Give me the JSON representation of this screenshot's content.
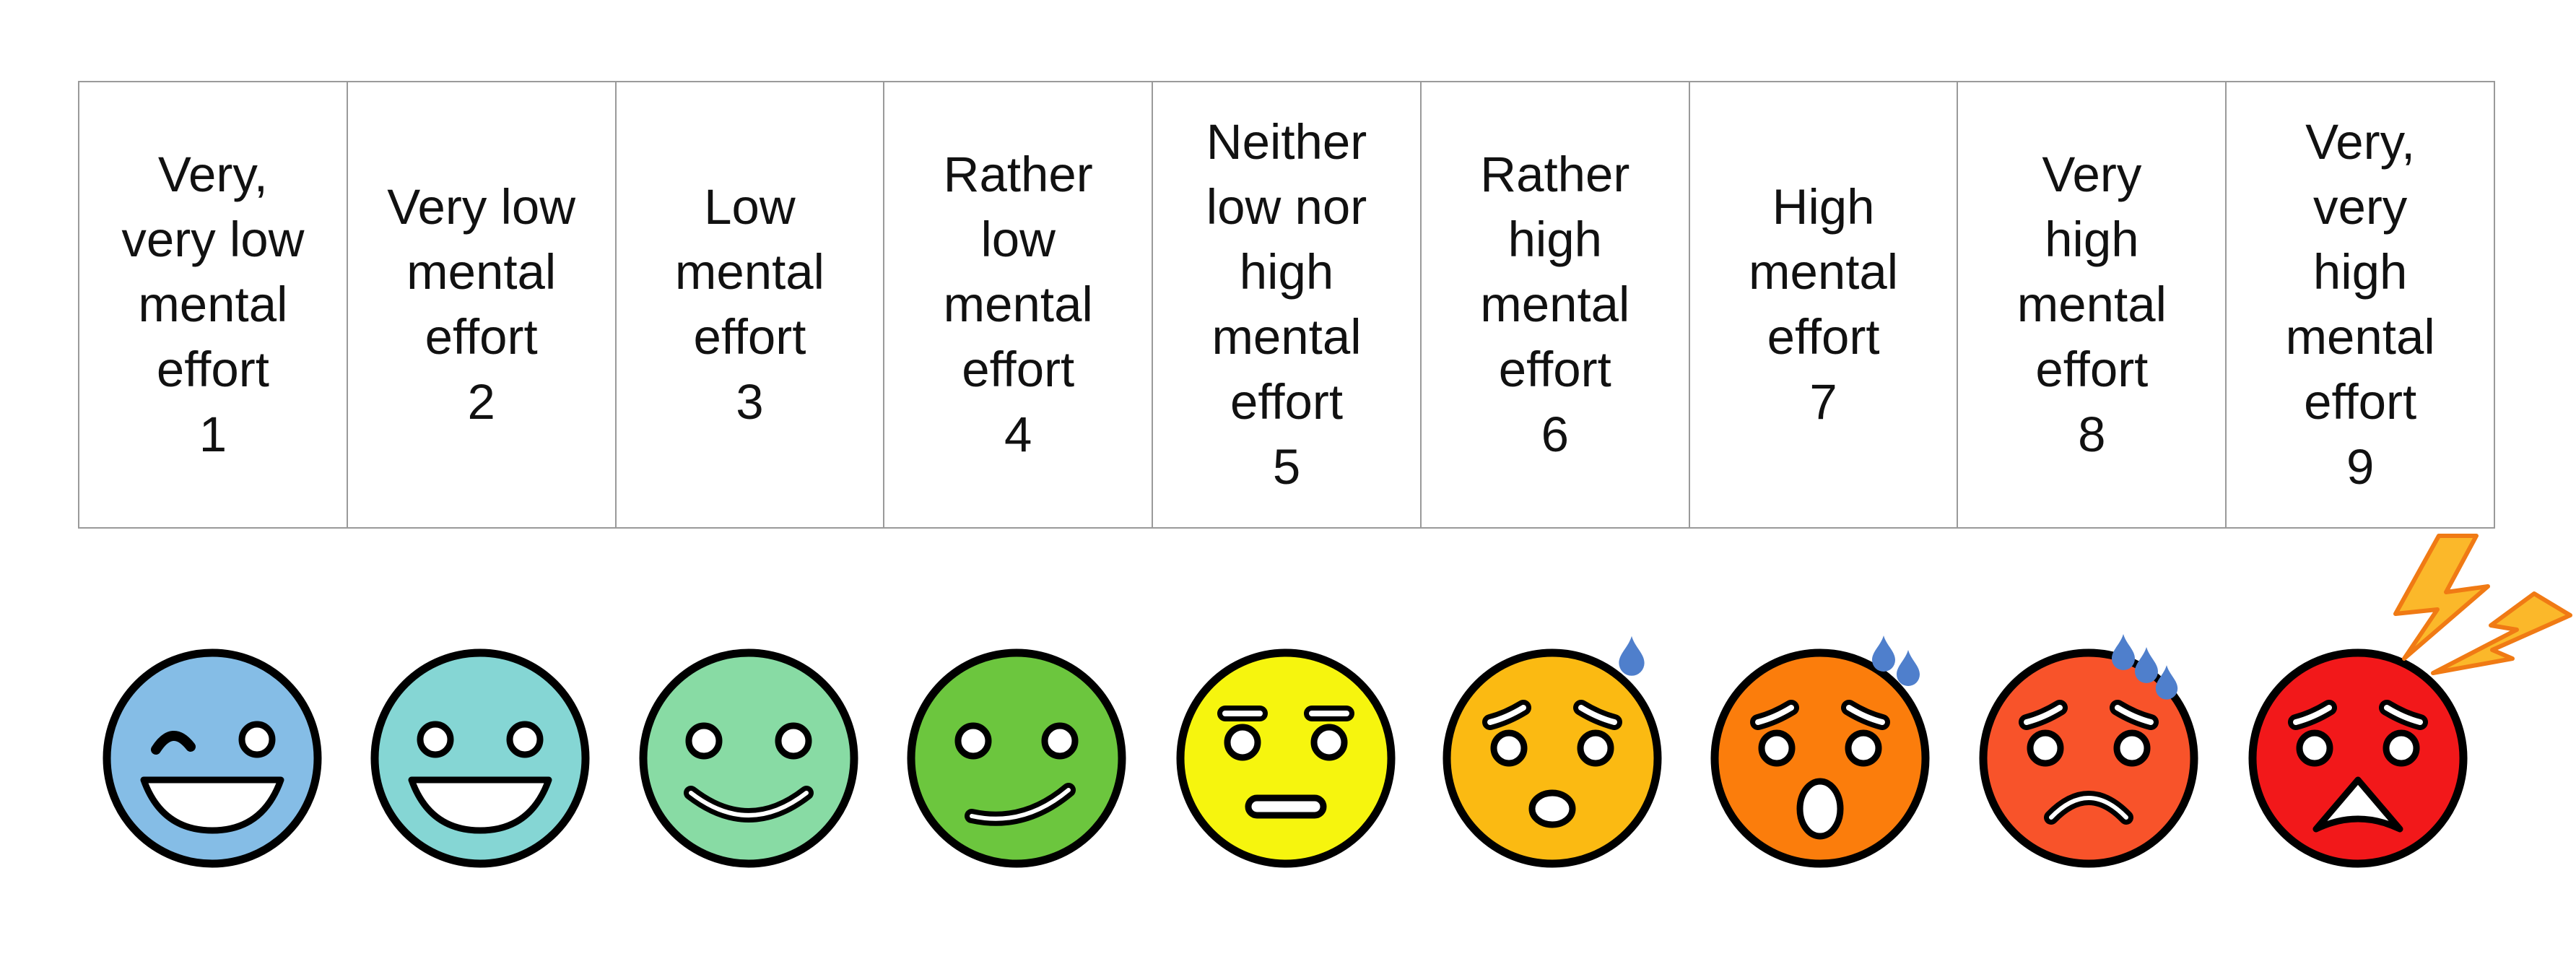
{
  "scale": [
    {
      "lines": [
        "Very,",
        "very low",
        "mental",
        "effort"
      ],
      "number": "1"
    },
    {
      "lines": [
        "Very low",
        "mental",
        "effort"
      ],
      "number": "2"
    },
    {
      "lines": [
        "Low",
        "mental",
        "effort"
      ],
      "number": "3"
    },
    {
      "lines": [
        "Rather",
        "low",
        "mental",
        "effort"
      ],
      "number": "4"
    },
    {
      "lines": [
        "Neither",
        "low nor",
        "high",
        "mental",
        "effort"
      ],
      "number": "5"
    },
    {
      "lines": [
        "Rather",
        "high",
        "mental",
        "effort"
      ],
      "number": "6"
    },
    {
      "lines": [
        "High",
        "mental",
        "effort"
      ],
      "number": "7"
    },
    {
      "lines": [
        "Very",
        "high",
        "mental",
        "effort"
      ],
      "number": "8"
    },
    {
      "lines": [
        "Very,",
        "very",
        "high",
        "mental",
        "effort"
      ],
      "number": "9"
    }
  ],
  "faces": [
    {
      "icon": "winking-laughing-face-icon",
      "color": "#85bde6"
    },
    {
      "icon": "grinning-face-icon",
      "color": "#85d6d4"
    },
    {
      "icon": "smiling-face-icon",
      "color": "#88dba4"
    },
    {
      "icon": "smirking-face-icon",
      "color": "#6cc63e"
    },
    {
      "icon": "neutral-face-icon",
      "color": "#f6f50e"
    },
    {
      "icon": "worried-face-icon",
      "color": "#fbba12"
    },
    {
      "icon": "surprised-face-icon",
      "color": "#fb7d0c"
    },
    {
      "icon": "frowning-face-icon",
      "color": "#f8532a"
    },
    {
      "icon": "anguished-face-icon",
      "color": "#f2181a"
    }
  ],
  "accents": {
    "sweat_drop": "#4f7fcc",
    "lightning": "#fbb82a",
    "lightning_outline": "#f07a14"
  }
}
